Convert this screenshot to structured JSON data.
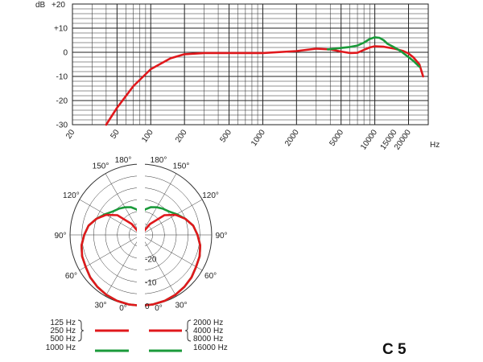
{
  "chart_data": [
    {
      "type": "line",
      "x_scale": "log",
      "xlim": [
        20,
        30000
      ],
      "ylim": [
        -30,
        20
      ],
      "y_unit": "dB",
      "x_unit": "Hz",
      "grid": true,
      "y_ticks": [
        "+20",
        "+10",
        "0",
        "-10",
        "-20",
        "-30"
      ],
      "y_tick_values": [
        20,
        10,
        0,
        -10,
        -20,
        -30
      ],
      "x_ticks": [
        "20",
        "50",
        "100",
        "200",
        "500",
        "1000",
        "2000",
        "5000",
        "10000",
        "15000",
        "20000"
      ],
      "x_tick_values": [
        20,
        50,
        100,
        200,
        500,
        1000,
        2000,
        5000,
        10000,
        15000,
        20000
      ],
      "series": [
        {
          "color": "#e0181c",
          "x": [
            40,
            50,
            70,
            100,
            150,
            200,
            300,
            500,
            1000,
            2000,
            3000,
            4000,
            5000,
            6000,
            7000,
            8000,
            9000,
            10000,
            12000,
            15000,
            18000,
            20000,
            22000,
            25000,
            27000
          ],
          "y": [
            -30,
            -23,
            -14,
            -7,
            -2.5,
            -0.8,
            -0.3,
            -0.3,
            -0.3,
            0.5,
            1.5,
            1.2,
            0.3,
            -0.3,
            -0.2,
            1,
            2,
            2.5,
            2.3,
            1.5,
            0.5,
            -0.5,
            -2,
            -5,
            -10
          ]
        },
        {
          "color": "#1a9a3a",
          "x": [
            3800,
            5000,
            6000,
            7000,
            8000,
            9000,
            10000,
            11000,
            12000,
            13000,
            15000,
            17000,
            20000,
            22000,
            25000
          ],
          "y": [
            1.2,
            1.8,
            2.2,
            2.8,
            4,
            5.5,
            6.2,
            6,
            5,
            3.5,
            2,
            0.5,
            -2,
            -3.5,
            -6
          ]
        }
      ]
    },
    {
      "type": "polar",
      "angle_labels": [
        "180°",
        "150°",
        "120°",
        "90°",
        "60°",
        "30°",
        "0°"
      ],
      "radial_labels": [
        "-20",
        "-10",
        "0"
      ],
      "radial_values": [
        -20,
        -10,
        0
      ],
      "rlim": [
        -30,
        0
      ],
      "series": [
        {
          "color": "#e0181c",
          "angles": [
            0,
            10,
            20,
            30,
            40,
            50,
            60,
            70,
            80,
            90,
            100,
            110,
            120,
            130,
            140,
            150,
            160,
            170,
            180
          ],
          "r": [
            0,
            -0.1,
            -0.3,
            -0.7,
            -1.3,
            -2,
            -3,
            -3.5,
            -4.5,
            -6,
            -7.5,
            -10,
            -13,
            -17,
            -24,
            -30,
            -30,
            -26,
            -30
          ]
        },
        {
          "color": "#1a9a3a",
          "angles": [
            0,
            10,
            20,
            30,
            40,
            50,
            60,
            70,
            80,
            90,
            100,
            110,
            120,
            130,
            140,
            150,
            160,
            170,
            180
          ],
          "r": [
            0,
            -0.1,
            -0.3,
            -0.7,
            -1.3,
            -2,
            -3,
            -3.5,
            -4.5,
            -6,
            -7.5,
            -10,
            -12.5,
            -14.5,
            -15.5,
            -16.5,
            -17.5,
            -19,
            -21
          ]
        }
      ]
    }
  ],
  "header": {
    "y_axis_unit": "dB",
    "x_axis_unit": "Hz"
  },
  "legend": {
    "left": [
      "125 Hz",
      "250 Hz",
      "500 Hz",
      "1000 Hz"
    ],
    "right": [
      "2000 Hz",
      "4000 Hz",
      "8000 Hz",
      "16000 Hz"
    ],
    "red_color": "#e0181c",
    "green_color": "#1a9a3a"
  },
  "model": "C 5"
}
